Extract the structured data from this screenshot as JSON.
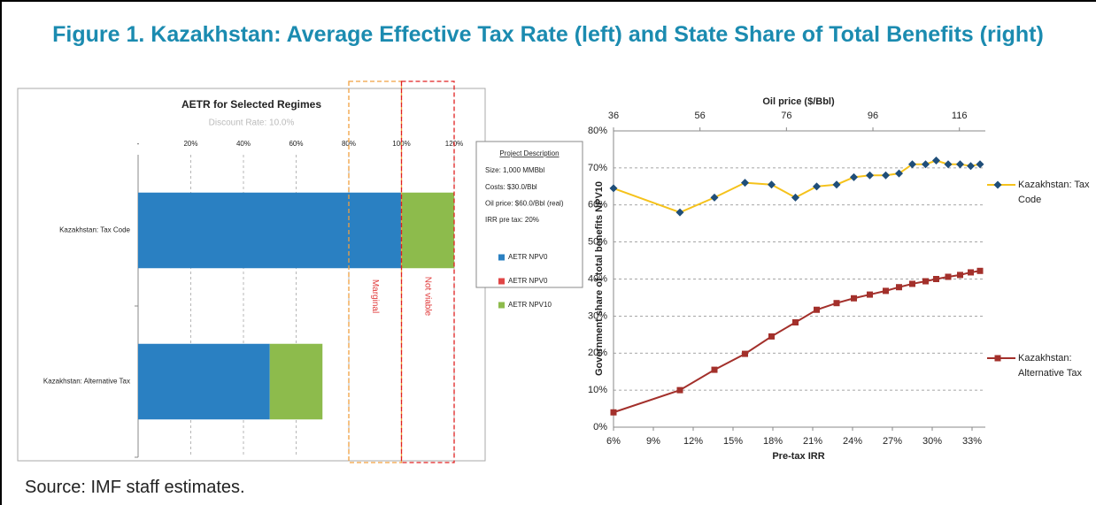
{
  "title": "Figure 1. Kazakhstan: Average Effective Tax Rate (left) and State Share of Total Benefits (right)",
  "source": "Source: IMF staff estimates.",
  "chart_data": [
    {
      "type": "hbar_stacked",
      "title": "AETR for Selected Regimes",
      "subtitle": "Discount Rate: 10.0%",
      "categories": [
        "Kazakhstan: Tax Code",
        "Kazakhstan: Alternative Tax"
      ],
      "series": [
        {
          "name": "AETR NPV0",
          "color": "#2a80c2",
          "values": [
            100,
            50
          ]
        },
        {
          "name": "AETR NPV0",
          "color": "#e04646",
          "values": [
            0,
            0
          ]
        },
        {
          "name": "AETR NPV10",
          "color": "#8dbb4c",
          "values": [
            20,
            20
          ]
        }
      ],
      "xlim": [
        0,
        120
      ],
      "xticks": [
        {
          "value": 0,
          "label": "-"
        },
        {
          "value": 20,
          "label": "20%"
        },
        {
          "value": 40,
          "label": "40%"
        },
        {
          "value": 60,
          "label": "60%"
        },
        {
          "value": 80,
          "label": "80%"
        },
        {
          "value": 100,
          "label": "100%"
        },
        {
          "value": 120,
          "label": "120%"
        }
      ],
      "grid": true,
      "zones": [
        {
          "label": "Marginal",
          "range": [
            80,
            100
          ],
          "color": "#f0a040"
        },
        {
          "label": "Not viable",
          "range": [
            100,
            120
          ],
          "color": "#e02020"
        }
      ],
      "annotation": {
        "title": "Project Description",
        "lines": [
          "Size: 1,000 MMBbl",
          "Costs: $30.0/Bbl",
          "Oil price: $60.0/Bbl (real)",
          "IRR pre tax: 20%"
        ]
      }
    },
    {
      "type": "line",
      "xlabel": "Pre-tax IRR",
      "x2label": "Oil price ($/Bbl)",
      "ylabel": "Government share of total benefits NPV10",
      "x": [
        6,
        11,
        13.6,
        15.9,
        17.9,
        19.7,
        21.3,
        22.8,
        24.1,
        25.3,
        26.5,
        27.5,
        28.5,
        29.5,
        30.3,
        31.2,
        32.1,
        32.9,
        33.6
      ],
      "xlim": [
        6,
        34
      ],
      "xticks": [
        {
          "value": 6,
          "label": "6%"
        },
        {
          "value": 9,
          "label": "9%"
        },
        {
          "value": 12,
          "label": "12%"
        },
        {
          "value": 15,
          "label": "15%"
        },
        {
          "value": 18,
          "label": "18%"
        },
        {
          "value": 21,
          "label": "21%"
        },
        {
          "value": 24,
          "label": "24%"
        },
        {
          "value": 27,
          "label": "27%"
        },
        {
          "value": 30,
          "label": "30%"
        },
        {
          "value": 33,
          "label": "33%"
        }
      ],
      "x2lim": [
        36,
        122
      ],
      "x2ticks": [
        36,
        56,
        76,
        96,
        116
      ],
      "ylim": [
        0,
        80
      ],
      "yticks": [
        {
          "value": 0,
          "label": "0%"
        },
        {
          "value": 10,
          "label": "10%"
        },
        {
          "value": 20,
          "label": "20%"
        },
        {
          "value": 30,
          "label": "30%"
        },
        {
          "value": 40,
          "label": "40%"
        },
        {
          "value": 50,
          "label": "50%"
        },
        {
          "value": 60,
          "label": "60%"
        },
        {
          "value": 70,
          "label": "70%"
        },
        {
          "value": 80,
          "label": "80%"
        }
      ],
      "grid": true,
      "series": [
        {
          "name": "Kazakhstan: Tax Code",
          "color": "#f5c21b",
          "marker": "diamond",
          "marker_color": "#1f4e79",
          "values": [
            64.5,
            58,
            62,
            66,
            65.5,
            62,
            65,
            65.5,
            67.5,
            68,
            68,
            68.5,
            71,
            71,
            72,
            71,
            71,
            70.5,
            71
          ]
        },
        {
          "name": "Kazakhstan: Alternative Tax",
          "color": "#a3302b",
          "marker": "square",
          "marker_color": "#a3302b",
          "values": [
            4,
            10,
            15.5,
            19.8,
            24.5,
            28.3,
            31.7,
            33.5,
            34.8,
            35.8,
            36.8,
            37.8,
            38.7,
            39.4,
            40,
            40.6,
            41.1,
            41.8,
            42.2
          ]
        }
      ]
    }
  ]
}
